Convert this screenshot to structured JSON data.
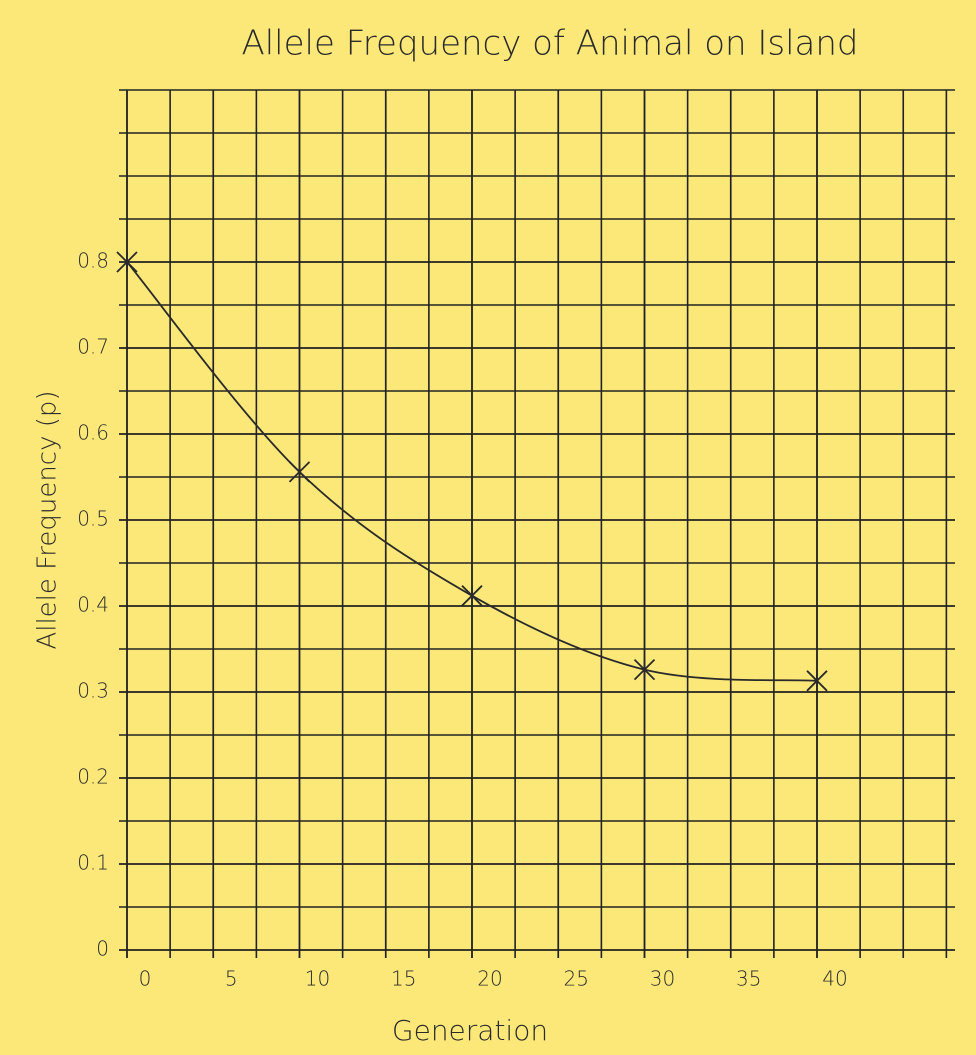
{
  "chart_data": {
    "type": "line",
    "title": "Allele Frequency of Animal on Island",
    "x_label": "Generation",
    "y_label": "Allele Frequency (p)",
    "x": [
      0,
      10,
      20,
      30,
      40
    ],
    "series": [
      {
        "color": "#2a2a2a",
        "marker": "x",
        "values": [
          0.8,
          0.556,
          0.412,
          0.326,
          0.313
        ]
      }
    ],
    "xlim": [
      0,
      48
    ],
    "ylim": [
      0,
      1.0
    ],
    "xticks": [
      0,
      5,
      10,
      15,
      20,
      25,
      30,
      35,
      40
    ],
    "yticks": [
      0,
      0.1,
      0.2,
      0.3,
      0.4,
      0.5,
      0.6,
      0.7,
      0.8
    ],
    "grid": true
  }
}
